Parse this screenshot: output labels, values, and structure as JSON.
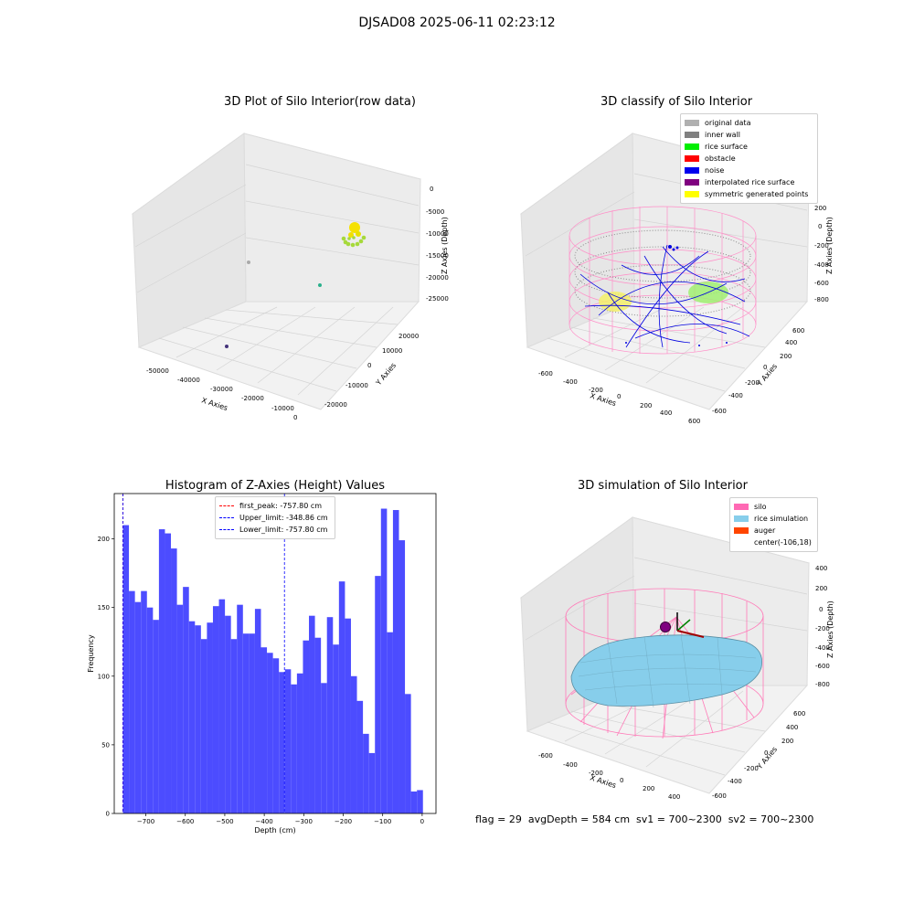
{
  "suptitle": "DJSAD08 2025-06-11 02:23:12",
  "footer": "flag = 29  avgDepth = 584 cm  sv1 = 700~2300  sv2 = 700~2300",
  "raw_plot": {
    "title": "3D Plot of Silo Interior(row data)",
    "xlabel": "X Axies",
    "ylabel": "Y Axies",
    "zlabel": "Z Axies (Depth)",
    "xticks": [
      "-50000",
      "-40000",
      "-30000",
      "-20000",
      "-10000",
      "0"
    ],
    "yticks": [
      "-20000",
      "-10000",
      "0",
      "10000",
      "20000"
    ],
    "zticks": [
      "0",
      "-5000",
      "-10000",
      "-15000",
      "-20000",
      "-25000"
    ]
  },
  "classify_plot": {
    "title": "3D classify of Silo Interior",
    "xlabel": "X Axies",
    "ylabel": "Y Axies",
    "zlabel": "Z Axies (Depth)",
    "xticks": [
      "-600",
      "-400",
      "-200",
      "0",
      "200",
      "400",
      "600"
    ],
    "yticks": [
      "-600",
      "-400",
      "-200",
      "0",
      "200",
      "400",
      "600"
    ],
    "zticks": [
      "200",
      "0",
      "-200",
      "-400",
      "-600",
      "-800"
    ],
    "legend": [
      {
        "label": "original data",
        "color": "#b0b0b0"
      },
      {
        "label": "inner wall",
        "color": "#808080"
      },
      {
        "label": "rice surface",
        "color": "#00ee00"
      },
      {
        "label": "obstacle",
        "color": "#ff0000"
      },
      {
        "label": "noise",
        "color": "#0000ee"
      },
      {
        "label": "interpolated rice surface",
        "color": "#800080"
      },
      {
        "label": "symmetric generated points",
        "color": "#ffff00"
      }
    ]
  },
  "sim_plot": {
    "title": "3D simulation of Silo Interior",
    "xlabel": "X Axies",
    "ylabel": "Y Axies",
    "zlabel": "Z Axies (Depth)",
    "xticks": [
      "-600",
      "-400",
      "-200",
      "0",
      "200",
      "400"
    ],
    "yticks": [
      "-600",
      "-400",
      "-200",
      "0",
      "200",
      "400",
      "600"
    ],
    "zticks": [
      "400",
      "200",
      "0",
      "-200",
      "-400",
      "-600",
      "-800"
    ],
    "legend": [
      {
        "label": "silo",
        "color": "#ff69b4"
      },
      {
        "label": "rice simulation",
        "color": "#87ceeb"
      },
      {
        "label": "auger",
        "color": "#ff4500"
      },
      {
        "label": "center(-106,18)",
        "color": "#ffffff"
      }
    ]
  },
  "chart_data": {
    "type": "bar",
    "title": "Histogram of Z-Axies (Height) Values",
    "xlabel": "Depth (cm)",
    "ylabel": "Frequency",
    "xlim": [
      -780,
      35
    ],
    "ylim": [
      0,
      233
    ],
    "bin_start": -758,
    "bin_width": 15.2,
    "values": [
      210,
      162,
      154,
      162,
      150,
      141,
      207,
      204,
      193,
      152,
      165,
      140,
      137,
      127,
      139,
      151,
      156,
      144,
      127,
      152,
      131,
      131,
      149,
      121,
      117,
      113,
      103,
      105,
      94,
      102,
      126,
      144,
      128,
      95,
      143,
      123,
      169,
      142,
      100,
      82,
      58,
      44,
      173,
      222,
      132,
      221,
      199,
      87,
      16,
      17
    ],
    "xticks": [
      -700,
      -600,
      -500,
      -400,
      -300,
      -200,
      -100,
      0
    ],
    "yticks": [
      0,
      50,
      100,
      150,
      200
    ],
    "lines": [
      {
        "label": "first_peak: -757.80 cm",
        "value": -757.8,
        "color": "#ff0000"
      },
      {
        "label": "Upper_limit: -348.86 cm",
        "value": -348.86,
        "color": "#0000ff"
      },
      {
        "label": "Lower_limit: -757.80 cm",
        "value": -757.8,
        "color": "#0000ff"
      }
    ]
  }
}
